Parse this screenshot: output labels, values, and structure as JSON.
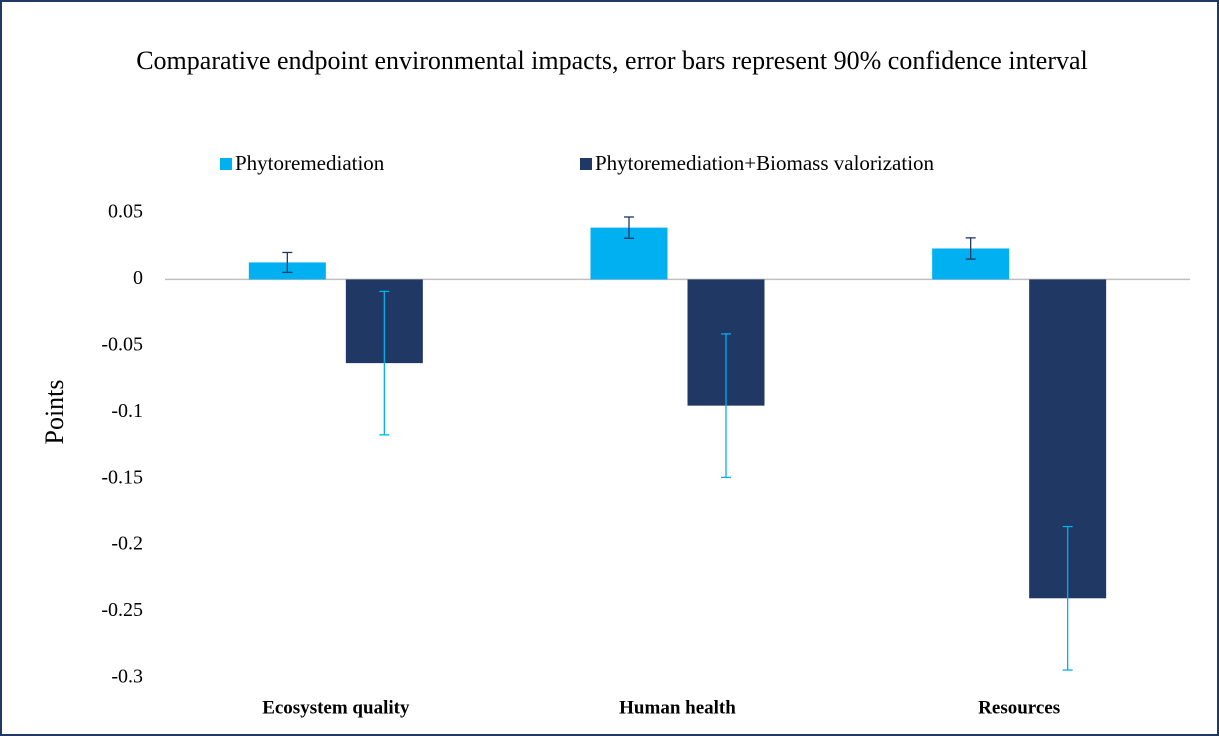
{
  "chart_data": {
    "type": "bar",
    "title": "Comparative endpoint environmental impacts, error bars represent 90% confidence interval",
    "y_label": "Points",
    "categories": [
      "Ecosystem quality",
      "Human health",
      "Resources"
    ],
    "series": [
      {
        "name": "Phytoremediation",
        "color": "#00b0f0",
        "error_color": "#1f3864",
        "values": [
          0.0128,
          0.039,
          0.0233
        ],
        "errors": [
          0.0075,
          0.008,
          0.008
        ]
      },
      {
        "name": "Phytoremediation+Biomass valorization",
        "color": "#1f3864",
        "error_color": "#00b0f0",
        "values": [
          -0.063,
          -0.095,
          -0.24
        ],
        "errors": [
          0.054,
          0.054,
          0.054
        ]
      }
    ],
    "ylim": [
      -0.3,
      0.05
    ],
    "yticks": [
      0.05,
      0,
      -0.05,
      -0.1,
      -0.15,
      -0.2,
      -0.25,
      -0.3
    ],
    "legend": "top",
    "grid": false
  }
}
